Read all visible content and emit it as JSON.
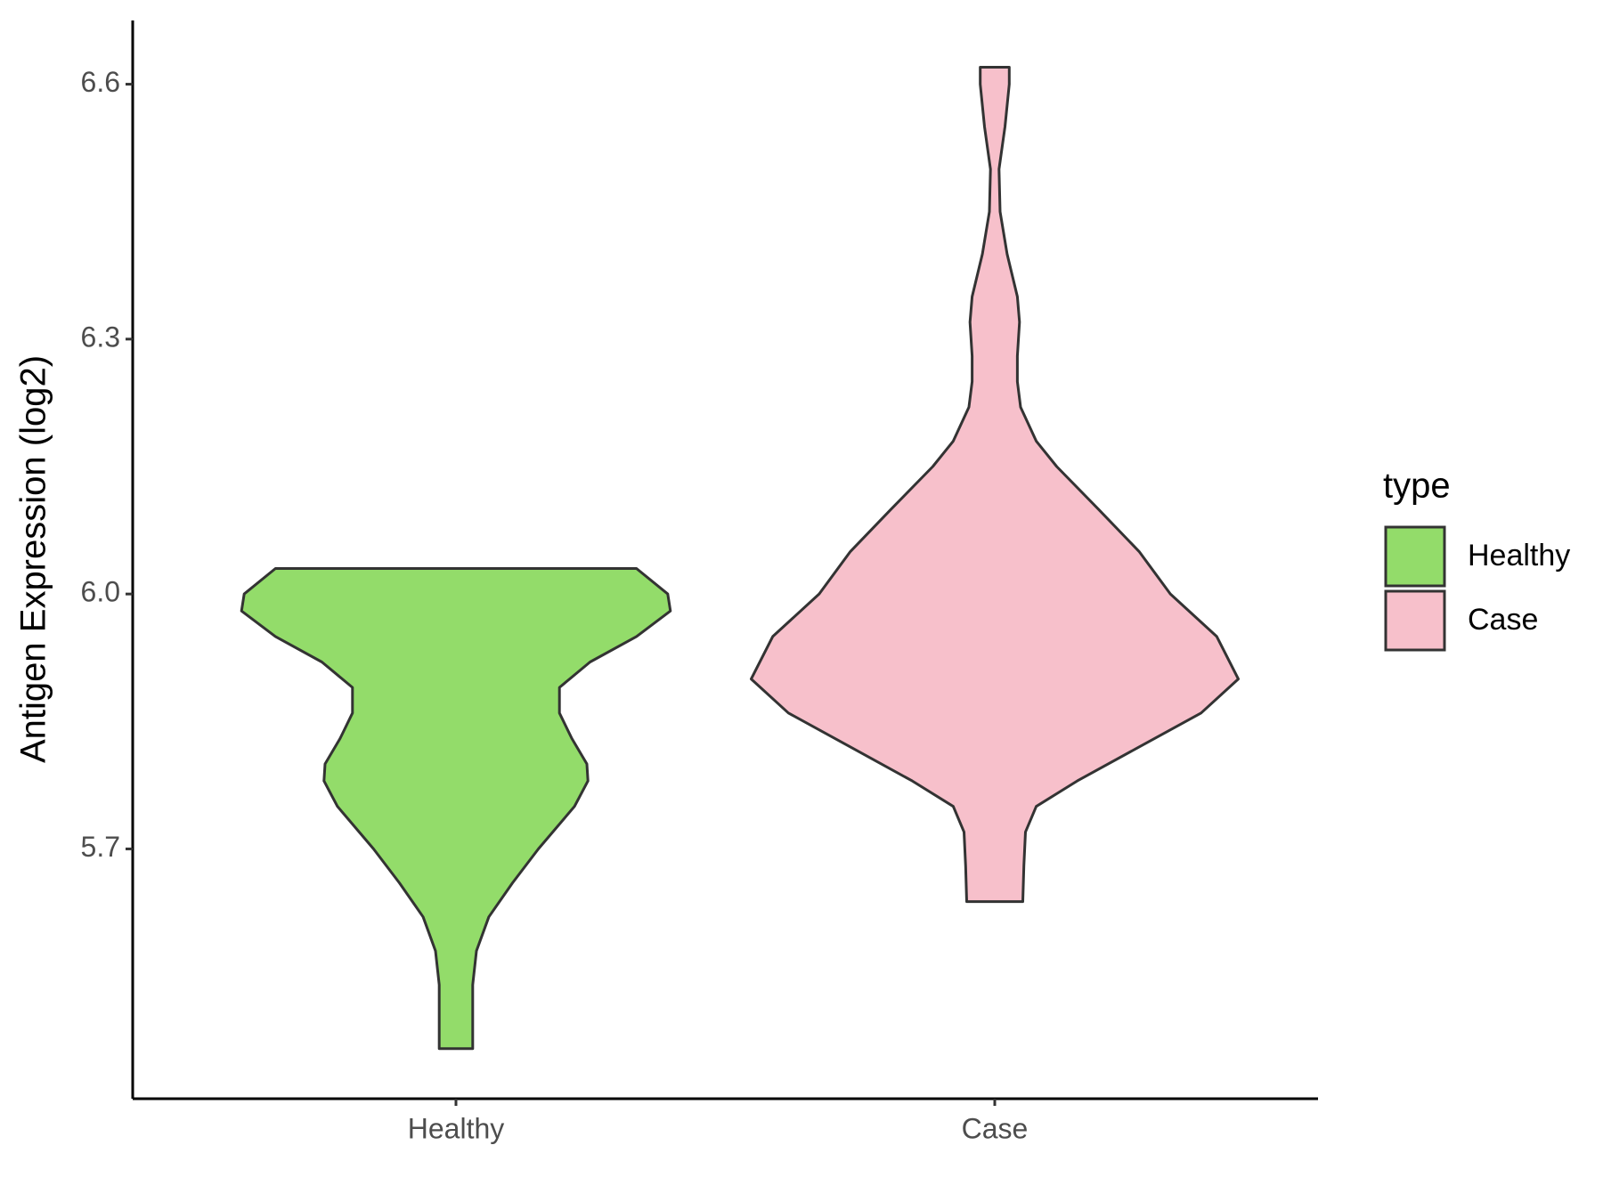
{
  "chart_data": {
    "type": "violin",
    "y_label": "Antigen Expression (log2)",
    "categories": [
      "Healthy",
      "Case"
    ],
    "legend_title": "type",
    "legend_position": "right",
    "ylim": [
      5.406,
      6.675
    ],
    "yticks": [
      {
        "value": 5.7,
        "label": "5.7"
      },
      {
        "value": 6.0,
        "label": "6.0"
      },
      {
        "value": 6.3,
        "label": "6.3"
      },
      {
        "value": 6.6,
        "label": "6.6"
      }
    ],
    "series": [
      {
        "name": "Healthy",
        "color": "#93dc6a",
        "y": [
          6.03,
          6.0,
          5.98,
          5.95,
          5.92,
          5.89,
          5.86,
          5.83,
          5.8,
          5.78,
          5.75,
          5.7,
          5.66,
          5.62,
          5.58,
          5.54,
          5.5,
          5.465
        ],
        "half_width": [
          0.335,
          0.393,
          0.398,
          0.335,
          0.249,
          0.192,
          0.192,
          0.215,
          0.243,
          0.245,
          0.22,
          0.153,
          0.105,
          0.061,
          0.038,
          0.031,
          0.031,
          0.031
        ]
      },
      {
        "name": "Case",
        "color": "#f7c0cb",
        "y": [
          6.62,
          6.6,
          6.55,
          6.5,
          6.45,
          6.4,
          6.35,
          6.32,
          6.28,
          6.25,
          6.22,
          6.18,
          6.15,
          6.1,
          6.05,
          6.0,
          5.95,
          5.9,
          5.86,
          5.82,
          5.78,
          5.75,
          5.72,
          5.68,
          5.638
        ],
        "half_width": [
          0.027,
          0.027,
          0.019,
          0.008,
          0.01,
          0.023,
          0.042,
          0.046,
          0.042,
          0.042,
          0.048,
          0.077,
          0.115,
          0.192,
          0.268,
          0.326,
          0.412,
          0.452,
          0.383,
          0.268,
          0.153,
          0.077,
          0.057,
          0.054,
          0.052
        ]
      }
    ]
  }
}
